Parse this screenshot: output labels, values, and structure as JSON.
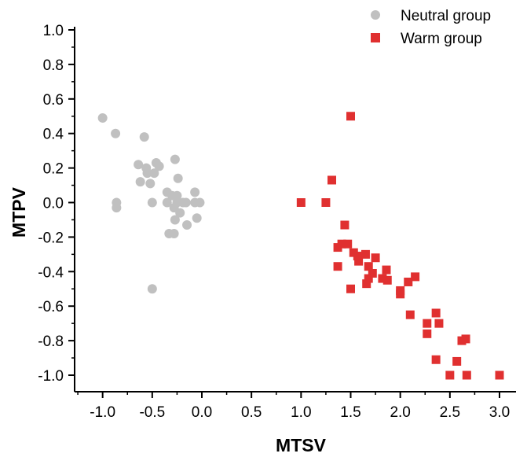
{
  "chart_data": {
    "type": "scatter",
    "xlabel": "MTSV",
    "ylabel": "MTPV",
    "xlim": [
      -1.25,
      3.15
    ],
    "ylim": [
      -1.1,
      1.0
    ],
    "x_ticks": [
      "-1.0",
      "-0.5",
      "0.0",
      "0.5",
      "1.0",
      "1.5",
      "2.0",
      "2.5",
      "3.0"
    ],
    "y_ticks": [
      "1.0",
      "0.8",
      "0.6",
      "0.4",
      "0.2",
      "0.0",
      "-0.2",
      "-0.4",
      "-0.6",
      "-0.8",
      "-1.0"
    ],
    "legend_position": "top-right",
    "series": [
      {
        "name": "Neutral group",
        "marker": "circle",
        "color": "#c0c0c0",
        "points": [
          [
            -1.0,
            0.49
          ],
          [
            -0.87,
            0.4
          ],
          [
            -0.86,
            0.0
          ],
          [
            -0.86,
            -0.03
          ],
          [
            -0.58,
            0.38
          ],
          [
            -0.64,
            0.22
          ],
          [
            -0.56,
            0.2
          ],
          [
            -0.55,
            0.17
          ],
          [
            -0.48,
            0.17
          ],
          [
            -0.46,
            0.23
          ],
          [
            -0.43,
            0.21
          ],
          [
            -0.62,
            0.12
          ],
          [
            -0.52,
            0.11
          ],
          [
            -0.5,
            0.0
          ],
          [
            -0.5,
            -0.5
          ],
          [
            -0.27,
            0.25
          ],
          [
            -0.24,
            0.14
          ],
          [
            -0.35,
            0.06
          ],
          [
            -0.3,
            0.04
          ],
          [
            -0.25,
            0.04
          ],
          [
            -0.35,
            0.0
          ],
          [
            -0.25,
            0.0
          ],
          [
            -0.19,
            0.0
          ],
          [
            -0.16,
            0.0
          ],
          [
            -0.28,
            -0.03
          ],
          [
            -0.22,
            -0.06
          ],
          [
            -0.27,
            -0.1
          ],
          [
            -0.15,
            -0.13
          ],
          [
            -0.05,
            -0.09
          ],
          [
            -0.07,
            0.06
          ],
          [
            -0.07,
            0.0
          ],
          [
            -0.02,
            0.0
          ],
          [
            -0.33,
            -0.18
          ],
          [
            -0.28,
            -0.18
          ]
        ]
      },
      {
        "name": "Warm group",
        "marker": "square",
        "color": "#e03030",
        "points": [
          [
            1.5,
            0.5
          ],
          [
            1.31,
            0.13
          ],
          [
            1.0,
            0.0
          ],
          [
            1.25,
            0.0
          ],
          [
            1.44,
            -0.13
          ],
          [
            1.41,
            -0.24
          ],
          [
            1.47,
            -0.24
          ],
          [
            1.37,
            -0.26
          ],
          [
            1.53,
            -0.29
          ],
          [
            1.57,
            -0.31
          ],
          [
            1.65,
            -0.3
          ],
          [
            1.58,
            -0.34
          ],
          [
            1.75,
            -0.32
          ],
          [
            1.37,
            -0.37
          ],
          [
            1.68,
            -0.37
          ],
          [
            1.72,
            -0.41
          ],
          [
            1.86,
            -0.39
          ],
          [
            1.68,
            -0.44
          ],
          [
            1.82,
            -0.44
          ],
          [
            1.87,
            -0.45
          ],
          [
            1.66,
            -0.47
          ],
          [
            1.5,
            -0.5
          ],
          [
            2.0,
            -0.51
          ],
          [
            2.0,
            -0.53
          ],
          [
            2.08,
            -0.46
          ],
          [
            2.15,
            -0.43
          ],
          [
            2.1,
            -0.65
          ],
          [
            2.27,
            -0.7
          ],
          [
            2.27,
            -0.76
          ],
          [
            2.36,
            -0.64
          ],
          [
            2.39,
            -0.7
          ],
          [
            2.62,
            -0.8
          ],
          [
            2.66,
            -0.79
          ],
          [
            2.36,
            -0.91
          ],
          [
            2.57,
            -0.92
          ],
          [
            2.5,
            -1.0
          ],
          [
            2.67,
            -1.0
          ],
          [
            3.0,
            -1.0
          ]
        ]
      }
    ]
  }
}
